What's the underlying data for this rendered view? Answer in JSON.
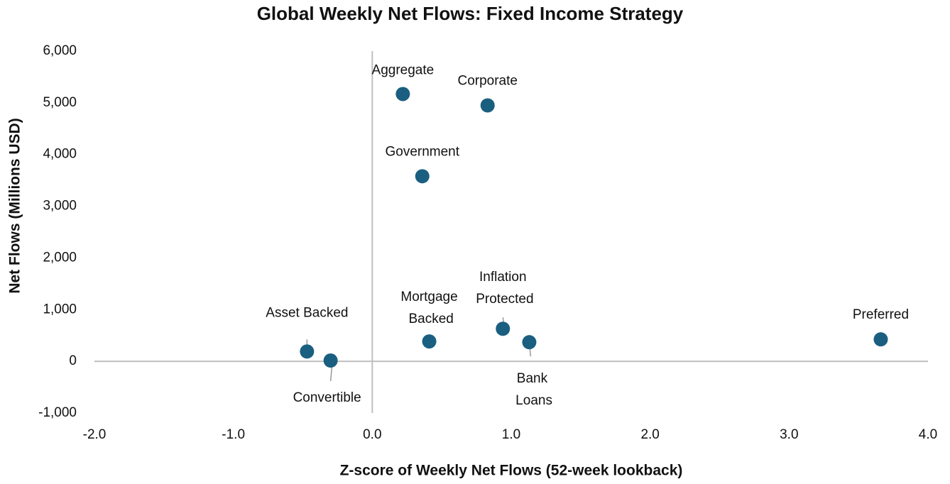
{
  "chart_data": {
    "type": "scatter",
    "title": "Global Weekly Net Flows: Fixed Income Strategy",
    "xlabel": "Z-score of Weekly Net Flows (52-week lookback)",
    "ylabel": "Net Flows (Millions USD)",
    "labels": [
      "Aggregate",
      "Corporate",
      "Government",
      "Asset Backed",
      "Convertible",
      "Mortgage Backed",
      "Inflation Protected",
      "Bank Loans",
      "Preferred"
    ],
    "x": [
      0.22,
      0.83,
      0.36,
      -0.47,
      -0.3,
      0.41,
      0.94,
      1.13,
      3.66
    ],
    "values": [
      5170,
      4950,
      3580,
      190,
      15,
      385,
      630,
      370,
      425
    ],
    "color": "#1a5f80",
    "xlim": [
      -2,
      4
    ],
    "xticks": [
      {
        "value": -2,
        "label": "-2.0"
      },
      {
        "value": -1,
        "label": "-1.0"
      },
      {
        "value": 0,
        "label": "0.0"
      },
      {
        "value": 1,
        "label": "1.0"
      },
      {
        "value": 2,
        "label": "2.0"
      },
      {
        "value": 3,
        "label": "3.0"
      },
      {
        "value": 4,
        "label": "4.0"
      }
    ],
    "ylim": [
      -1000,
      6000
    ],
    "yticks": [
      {
        "value": -1000,
        "label": "-1,000"
      },
      0,
      {
        "value": 1000,
        "label": "1,000"
      },
      {
        "value": 2000,
        "label": "2,000"
      },
      {
        "value": 3000,
        "label": "3,000"
      },
      {
        "value": 4000,
        "label": "4,000"
      },
      {
        "value": 5000,
        "label": "5,000"
      },
      {
        "value": 6000,
        "label": "6,000"
      }
    ],
    "grid": false
  }
}
